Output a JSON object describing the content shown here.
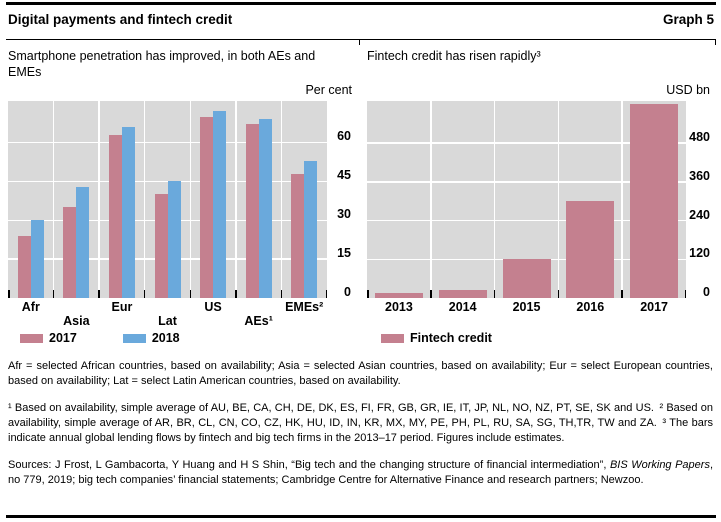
{
  "header": {
    "title": "Digital payments and fintech credit",
    "graph_label": "Graph 5"
  },
  "chart_data": [
    {
      "type": "bar",
      "title": "Smartphone penetration has improved, in both AEs and EMEs",
      "unit_label": "Per cent",
      "categories": [
        "Afr",
        "Asia",
        "Eur",
        "Lat",
        "US",
        "AEs¹",
        "EMEs²"
      ],
      "series": [
        {
          "name": "2017",
          "color": "#c4808f",
          "values": [
            24,
            35,
            63,
            40,
            70,
            67,
            48
          ]
        },
        {
          "name": "2018",
          "color": "#6aa9dc",
          "values": [
            30,
            43,
            66,
            45,
            72,
            69,
            53
          ]
        }
      ],
      "yticks": [
        0,
        15,
        30,
        45,
        60
      ],
      "ylim": [
        0,
        76
      ],
      "grid": true,
      "legend_position": "bottom-left",
      "label_rows": [
        0,
        1,
        0,
        1,
        0,
        1,
        0
      ]
    },
    {
      "type": "bar",
      "title": "Fintech credit has risen rapidly³",
      "unit_label": "USD bn",
      "categories": [
        "2013",
        "2014",
        "2015",
        "2016",
        "2017"
      ],
      "series": [
        {
          "name": "Fintech credit",
          "color": "#c4808f",
          "values": [
            15,
            25,
            120,
            300,
            600
          ]
        }
      ],
      "yticks": [
        0,
        120,
        240,
        360,
        480
      ],
      "ylim": [
        0,
        610
      ],
      "grid": true,
      "legend_position": "bottom-left",
      "label_rows": [
        0,
        0,
        0,
        0,
        0
      ]
    }
  ],
  "notes": {
    "definitions": "Afr = selected African countries, based on availability; Asia = selected Asian countries, based on availability; Eur = select European countries, based on availability; Lat = select Latin American countries, based on availability.",
    "footnotes": "¹ Based on availability, simple average of AU, BE, CA, CH, DE, DK, ES, FI, FR, GB, GR, IE, IT, JP, NL, NO, NZ, PT, SE, SK and US. ² Based on availability, simple average of AR, BR, CL, CN, CO, CZ, HK, HU, ID, IN, KR, MX, MY, PE, PH, PL, RU, SA, SG, TH,TR, TW and ZA. ³ The bars indicate annual global lending flows by fintech and big tech firms in the 2013–17 period. Figures include estimates.",
    "sources_prefix": "Sources: J Frost, L Gambacorta, Y Huang and H S Shin, “Big tech and the changing structure of financial intermediation”, ",
    "sources_italic": "BIS Working Papers",
    "sources_suffix": ", no 779, 2019; big tech companies’ financial statements; Cambridge Centre for Alternative Finance and research partners; Newzoo."
  },
  "colors": {
    "bar_2017": "#c4808f",
    "bar_2018": "#6aa9dc",
    "plot_background": "#d9d9d9"
  }
}
